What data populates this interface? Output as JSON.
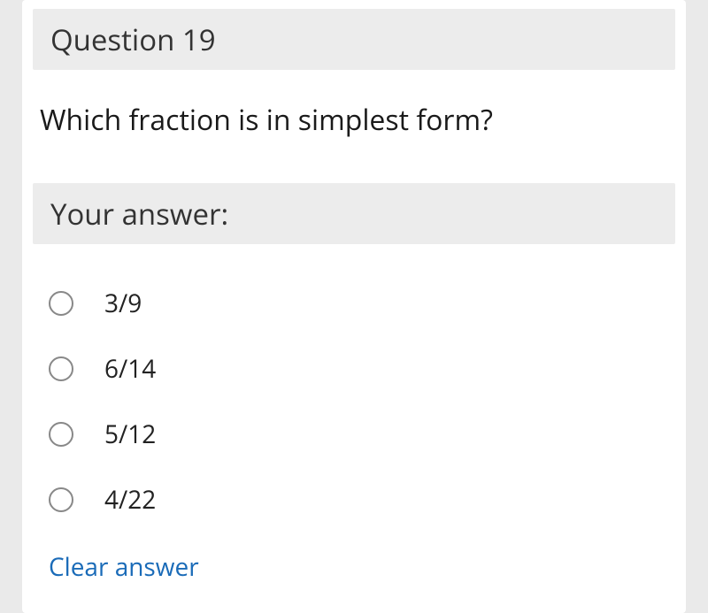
{
  "question": {
    "header": "Question 19",
    "text": "Which fraction is in simplest form?"
  },
  "answer": {
    "header": "Your answer:",
    "options": [
      {
        "label": "3/9"
      },
      {
        "label": "6/14"
      },
      {
        "label": "5/12"
      },
      {
        "label": "4/22"
      }
    ],
    "clear_label": "Clear answer"
  },
  "colors": {
    "page_bg": "#eaeaea",
    "card_bg": "#ffffff",
    "header_bg": "#ececec",
    "text": "#333333",
    "link": "#1a6bb8",
    "radio_border": "#888888"
  }
}
